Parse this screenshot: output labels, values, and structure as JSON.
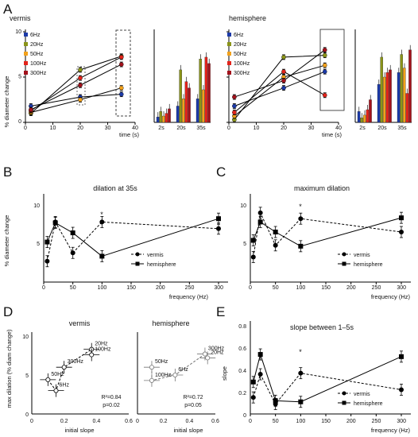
{
  "panel_labels": {
    "A": "A",
    "B": "B",
    "C": "C",
    "D": "D",
    "E": "E"
  },
  "colors": {
    "6Hz": "#1c3aa8",
    "20Hz": "#8a9418",
    "50Hz": "#f2a11b",
    "100Hz": "#e3241b",
    "300Hz": "#a3121c"
  },
  "chart_data": [
    {
      "id": "A-vermis-line",
      "type": "line",
      "title": "vermis",
      "ylabel": "% diameter change",
      "xlabel": "time (s)",
      "xlim": [
        0,
        40
      ],
      "ylim": [
        0,
        10
      ],
      "xticks": [
        "0",
        "10",
        "20",
        "30",
        "40"
      ],
      "yticks": [
        "0",
        "5",
        "10"
      ],
      "x": [
        2,
        20,
        35
      ],
      "series": [
        {
          "name": "6Hz",
          "values": [
            1.8,
            2.8,
            3.1
          ]
        },
        {
          "name": "20Hz",
          "values": [
            1.0,
            5.8,
            7.3
          ]
        },
        {
          "name": "50Hz",
          "values": [
            1.1,
            2.5,
            3.8
          ]
        },
        {
          "name": "100Hz",
          "values": [
            1.3,
            4.9,
            7.2
          ]
        },
        {
          "name": "300Hz",
          "values": [
            1.4,
            4.1,
            6.4
          ]
        }
      ]
    },
    {
      "id": "A-vermis-bar",
      "type": "bar",
      "categories": [
        "2s",
        "20s",
        "35s"
      ],
      "ylim": [
        0,
        10
      ],
      "series": [
        {
          "name": "6Hz",
          "values": [
            0.6,
            1.8,
            2.6
          ]
        },
        {
          "name": "20Hz",
          "values": [
            1.2,
            5.8,
            7.0
          ]
        },
        {
          "name": "50Hz",
          "values": [
            0.7,
            2.6,
            3.6
          ]
        },
        {
          "name": "100Hz",
          "values": [
            1.0,
            4.5,
            7.2
          ]
        },
        {
          "name": "300Hz",
          "values": [
            1.5,
            3.8,
            6.5
          ]
        }
      ]
    },
    {
      "id": "A-hemisphere-line",
      "type": "line",
      "title": "hemisphere",
      "xlabel": "time (s)",
      "xlim": [
        0,
        40
      ],
      "ylim": [
        0,
        10
      ],
      "xticks": [
        "0",
        "10",
        "20",
        "30",
        "40"
      ],
      "x": [
        2,
        20,
        35
      ],
      "series": [
        {
          "name": "6Hz",
          "values": [
            1.8,
            3.8,
            5.6
          ]
        },
        {
          "name": "20Hz",
          "values": [
            0.3,
            7.2,
            7.4
          ]
        },
        {
          "name": "50Hz",
          "values": [
            0.7,
            5.0,
            6.3
          ]
        },
        {
          "name": "100Hz",
          "values": [
            1.1,
            5.6,
            3.0
          ]
        },
        {
          "name": "300Hz",
          "values": [
            2.8,
            4.6,
            8.0
          ]
        }
      ]
    },
    {
      "id": "A-hemisphere-bar",
      "type": "bar",
      "categories": [
        "2s",
        "20s",
        "35s"
      ],
      "ylim": [
        0,
        10
      ],
      "series": [
        {
          "name": "6Hz",
          "values": [
            1.2,
            4.2,
            5.5
          ]
        },
        {
          "name": "20Hz",
          "values": [
            0.5,
            7.2,
            7.5
          ]
        },
        {
          "name": "50Hz",
          "values": [
            0.8,
            5.0,
            6.0
          ]
        },
        {
          "name": "100Hz",
          "values": [
            1.4,
            5.5,
            3.2
          ]
        },
        {
          "name": "300Hz",
          "values": [
            2.5,
            5.8,
            8.0
          ]
        }
      ]
    },
    {
      "id": "B",
      "type": "line",
      "title": "dilation at 35s",
      "ylabel": "% diameter change",
      "xlabel": "frequency (Hz)",
      "xlim": [
        0,
        320
      ],
      "ylim": [
        0,
        10
      ],
      "xticks": [
        "0",
        "50",
        "100",
        "150",
        "200",
        "250",
        "300"
      ],
      "yticks": [
        "5",
        "10"
      ],
      "x": [
        6,
        20,
        50,
        100,
        300
      ],
      "annotation": "*",
      "series": [
        {
          "name": "vermis",
          "values": [
            2.5,
            7.2,
            3.5,
            7.2,
            6.4
          ]
        },
        {
          "name": "hemisphere",
          "values": [
            4.8,
            7.1,
            5.9,
            3.1,
            7.6
          ]
        }
      ]
    },
    {
      "id": "C",
      "type": "line",
      "title": "maximum dilation",
      "xlabel": "frequency (Hz)",
      "xlim": [
        0,
        320
      ],
      "ylim": [
        0,
        10
      ],
      "xticks": [
        "0",
        "50",
        "100",
        "150",
        "200",
        "250",
        "300"
      ],
      "yticks": [
        "5",
        "10"
      ],
      "x": [
        6,
        20,
        50,
        100,
        300
      ],
      "annotation": "*",
      "series": [
        {
          "name": "vermis",
          "values": [
            3.0,
            8.3,
            4.4,
            7.6,
            6.0
          ]
        },
        {
          "name": "hemisphere",
          "values": [
            5.0,
            7.2,
            6.0,
            4.3,
            7.7
          ]
        }
      ]
    },
    {
      "id": "D-vermis",
      "type": "scatter",
      "title": "vermis",
      "ylabel": "max dilation (% diam change)",
      "xlabel": "initial slope",
      "xlim": [
        0,
        0.6
      ],
      "ylim": [
        0,
        10
      ],
      "xticks": [
        "0",
        "0.2",
        "0.4",
        "0.6"
      ],
      "yticks": [
        "0",
        "5",
        "10"
      ],
      "points": [
        {
          "label": "6Hz",
          "x": 0.15,
          "y": 3.0
        },
        {
          "label": "20Hz",
          "x": 0.37,
          "y": 8.3
        },
        {
          "label": "50Hz",
          "x": 0.1,
          "y": 4.4
        },
        {
          "label": "100Hz",
          "x": 0.37,
          "y": 7.6
        },
        {
          "label": "300Hz",
          "x": 0.2,
          "y": 6.0
        }
      ],
      "stats": [
        "R²=0.84",
        "p=0.02"
      ]
    },
    {
      "id": "D-hemisphere",
      "type": "scatter",
      "title": "hemisphere",
      "xlabel": "initial slope",
      "xlim": [
        0,
        0.6
      ],
      "ylim": [
        0,
        10
      ],
      "xticks": [
        "0",
        "0.2",
        "0.4",
        "0.6"
      ],
      "points": [
        {
          "label": "6Hz",
          "x": 0.29,
          "y": 5.0
        },
        {
          "label": "20Hz",
          "x": 0.54,
          "y": 7.2
        },
        {
          "label": "50Hz",
          "x": 0.11,
          "y": 6.0
        },
        {
          "label": "100Hz",
          "x": 0.11,
          "y": 4.3
        },
        {
          "label": "300Hz",
          "x": 0.52,
          "y": 7.7
        }
      ],
      "stats": [
        "R²=0.72",
        "p=0.05"
      ]
    },
    {
      "id": "E",
      "type": "line",
      "title": "slope between 1–5s",
      "ylabel": "slope",
      "xlabel": "frequency (Hz)",
      "xlim": [
        0,
        320
      ],
      "ylim": [
        0,
        0.8
      ],
      "xticks": [
        "0",
        "50",
        "100",
        "150",
        "200",
        "250",
        "300"
      ],
      "yticks": [
        "0",
        "0.2",
        "0.4",
        "0.6",
        "0.8"
      ],
      "x": [
        6,
        20,
        50,
        100,
        300
      ],
      "annotation": "*",
      "series": [
        {
          "name": "vermis",
          "values": [
            0.15,
            0.36,
            0.09,
            0.37,
            0.22
          ]
        },
        {
          "name": "hemisphere",
          "values": [
            0.29,
            0.54,
            0.12,
            0.11,
            0.52
          ]
        }
      ]
    }
  ]
}
